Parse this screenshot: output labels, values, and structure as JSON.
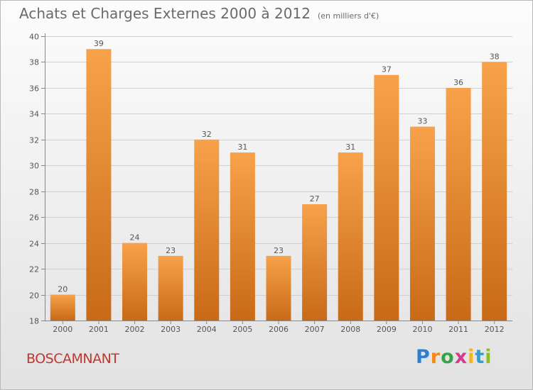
{
  "title": "Achats et Charges Externes 2000 à 2012",
  "subtitle": "(en milliers d'€)",
  "place_name": "BOSCAMNANT",
  "logo": {
    "letters": [
      {
        "ch": "P",
        "color": "#2f7fd1"
      },
      {
        "ch": "r",
        "color": "#f08a1c"
      },
      {
        "ch": "o",
        "color": "#3aa34a"
      },
      {
        "ch": "x",
        "color": "#d63a8e"
      },
      {
        "ch": "i",
        "color": "#f2b51c"
      },
      {
        "ch": "t",
        "color": "#2f9fd1"
      },
      {
        "ch": "i",
        "color": "#8bbf2a"
      }
    ]
  },
  "colors": {
    "bar_light": "#f7a24a",
    "bar_dark": "#c86a18",
    "axis": "#888888",
    "grid": "#d0d0d0",
    "text": "#555555"
  },
  "chart_data": {
    "type": "bar",
    "title": "Achats et Charges Externes 2000 à 2012",
    "xlabel": "",
    "ylabel": "",
    "categories": [
      "2000",
      "2001",
      "2002",
      "2003",
      "2004",
      "2005",
      "2006",
      "2007",
      "2008",
      "2009",
      "2010",
      "2011",
      "2012"
    ],
    "values": [
      20,
      39,
      24,
      23,
      32,
      31,
      23,
      27,
      31,
      37,
      33,
      36,
      38
    ],
    "ylim": [
      18,
      40
    ],
    "yticks": [
      18,
      20,
      22,
      24,
      26,
      28,
      30,
      32,
      34,
      36,
      38,
      40
    ],
    "grid": true,
    "data_labels": true
  }
}
